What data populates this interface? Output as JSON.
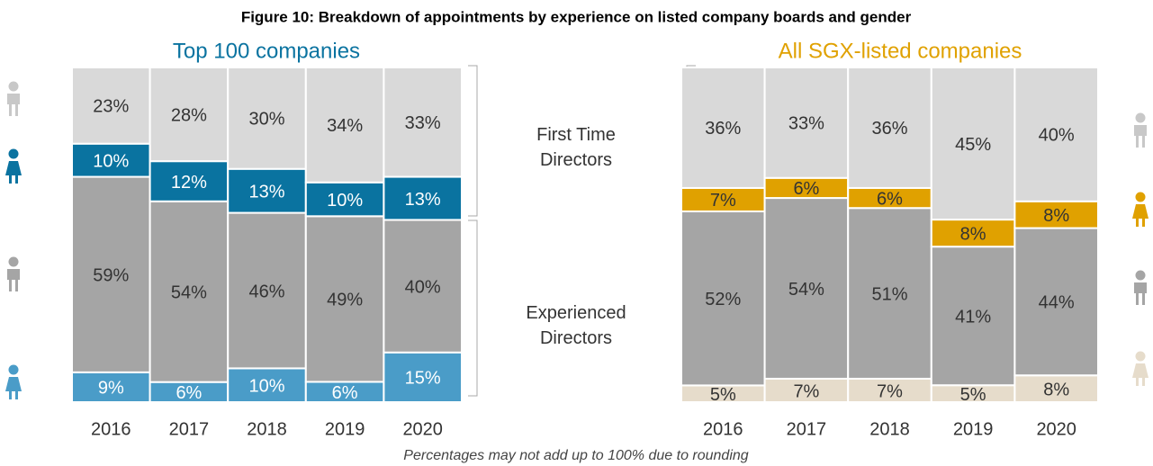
{
  "title": "Figure 10: Breakdown of appointments by experience on listed company boards and gender",
  "annotations": [
    "First Time Directors",
    "Experienced Directors"
  ],
  "footnote": "Percentages may not add up to 100% due to rounding",
  "chart_data": [
    {
      "type": "bar",
      "stacked": true,
      "title": "Top 100 companies",
      "title_color": "#0a73a0",
      "categories": [
        "2016",
        "2017",
        "2018",
        "2019",
        "2020"
      ],
      "series": [
        {
          "color": "#4a9cc8",
          "values": [
            9,
            6,
            10,
            6,
            15
          ],
          "value_labels": [
            "9%",
            "6%",
            "10%",
            "6%",
            "15%"
          ]
        },
        {
          "color": "#a5a5a5",
          "values": [
            59,
            54,
            46,
            49,
            40
          ],
          "value_labels": [
            "59%",
            "54%",
            "46%",
            "49%",
            "40%"
          ]
        },
        {
          "color": "#0a73a0",
          "values": [
            10,
            12,
            13,
            10,
            13
          ],
          "value_labels": [
            "10%",
            "12%",
            "13%",
            "10%",
            "13%"
          ]
        },
        {
          "color": "#d9d9d9",
          "values": [
            23,
            28,
            30,
            34,
            33
          ],
          "value_labels": [
            "23%",
            "28%",
            "30%",
            "34%",
            "33%"
          ]
        }
      ]
    },
    {
      "type": "bar",
      "stacked": true,
      "title": "All SGX-listed companies",
      "title_color": "#e0a100",
      "categories": [
        "2016",
        "2017",
        "2018",
        "2019",
        "2020"
      ],
      "series": [
        {
          "color": "#e6dccb",
          "values": [
            5,
            7,
            7,
            5,
            8
          ],
          "value_labels": [
            "5%",
            "7%",
            "7%",
            "5%",
            "8%"
          ]
        },
        {
          "color": "#a5a5a5",
          "values": [
            52,
            54,
            51,
            41,
            44
          ],
          "value_labels": [
            "52%",
            "54%",
            "51%",
            "41%",
            "44%"
          ]
        },
        {
          "color": "#e0a100",
          "values": [
            7,
            6,
            6,
            8,
            8
          ],
          "value_labels": [
            "7%",
            "6%",
            "6%",
            "8%",
            "8%"
          ]
        },
        {
          "color": "#d9d9d9",
          "values": [
            36,
            33,
            36,
            45,
            40
          ],
          "value_labels": [
            "36%",
            "33%",
            "36%",
            "45%",
            "40%"
          ]
        }
      ]
    }
  ]
}
